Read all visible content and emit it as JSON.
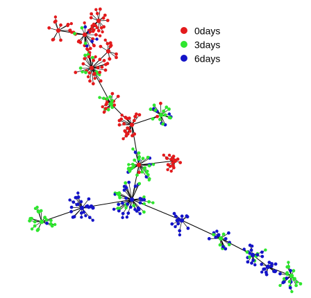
{
  "colors": {
    "0days": "#e31a1c",
    "3days": "#2ee62e",
    "6days": "#1414c8",
    "edge": "#000000"
  },
  "legend": [
    {
      "label": "0days",
      "color": "#e31a1c"
    },
    {
      "label": "3days",
      "color": "#2ee62e"
    },
    {
      "label": "6days",
      "color": "#1414c8"
    }
  ]
}
